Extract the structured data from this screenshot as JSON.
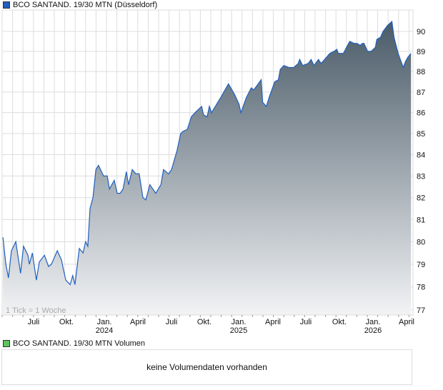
{
  "legend": {
    "price_label": "BCO SANTAND. 19/30 MTN (Düsseldorf)",
    "price_color": "#1f5fbf",
    "volume_label": "BCO SANTAND. 19/30 MTN Volumen",
    "volume_color": "#5cc45c"
  },
  "tick_note": "1 Tick = 1 Woche",
  "volume_message": "keine Volumendaten vorhanden",
  "chart_data": {
    "type": "area",
    "title": "",
    "xlabel": "",
    "ylabel": "",
    "ylim": [
      77,
      90.6
    ],
    "yscale": "log",
    "grid": true,
    "y_ticks": [
      77,
      78,
      79,
      80,
      81,
      82,
      83,
      84,
      85,
      86,
      87,
      88,
      89,
      90
    ],
    "x_ticks": [
      {
        "label": "Juli",
        "year": ""
      },
      {
        "label": "Okt.",
        "year": ""
      },
      {
        "label": "Jan.",
        "year": "2024"
      },
      {
        "label": "April",
        "year": ""
      },
      {
        "label": "Juli",
        "year": ""
      },
      {
        "label": "Okt.",
        "year": ""
      },
      {
        "label": "Jan.",
        "year": "2025"
      },
      {
        "label": "April",
        "year": ""
      },
      {
        "label": "Juli",
        "year": ""
      },
      {
        "label": "Okt.",
        "year": ""
      },
      {
        "label": "Jan.",
        "year": "2026"
      },
      {
        "label": "April",
        "year": ""
      }
    ],
    "line_color": "#1f5fbf",
    "fill_top_color": "#4a5b68",
    "fill_bottom_color": "#f2f3f5",
    "series": [
      {
        "dates": [
          "2023-03-31",
          "2023-04-08",
          "2023-04-15",
          "2023-04-23",
          "2023-05-05",
          "2023-05-18",
          "2023-05-26",
          "2023-06-07",
          "2023-06-11",
          "2023-06-19",
          "2023-06-30",
          "2023-07-08",
          "2023-07-22",
          "2023-08-02",
          "2023-08-10",
          "2023-08-26",
          "2023-09-06",
          "2023-09-18",
          "2023-09-30",
          "2023-10-07",
          "2023-10-13",
          "2023-10-25",
          "2023-11-04",
          "2023-11-11",
          "2023-11-17",
          "2023-11-23",
          "2023-12-01",
          "2023-12-09",
          "2023-12-16",
          "2023-12-30",
          "2024-01-09",
          "2024-01-15",
          "2024-01-28",
          "2024-02-05",
          "2024-02-13",
          "2024-02-21",
          "2024-03-01",
          "2024-03-07",
          "2024-03-17",
          "2024-03-27",
          "2024-04-05",
          "2024-04-15",
          "2024-04-23",
          "2024-05-04",
          "2024-05-20",
          "2024-06-03",
          "2024-06-10",
          "2024-06-24",
          "2024-07-02",
          "2024-07-17",
          "2024-07-27",
          "2024-08-02",
          "2024-08-14",
          "2024-08-25",
          "2024-09-04",
          "2024-09-22",
          "2024-09-27",
          "2024-10-07",
          "2024-10-13",
          "2024-10-19",
          "2024-11-05",
          "2024-11-15",
          "2024-12-01",
          "2024-12-04",
          "2024-12-20",
          "2025-01-02",
          "2025-01-07",
          "2025-01-21",
          "2025-02-04",
          "2025-02-11",
          "2025-02-23",
          "2025-03-03",
          "2025-03-07",
          "2025-03-17",
          "2025-03-26",
          "2025-04-09",
          "2025-04-19",
          "2025-04-24",
          "2025-05-04",
          "2025-05-18",
          "2025-05-31",
          "2025-06-12",
          "2025-06-16",
          "2025-06-24",
          "2025-07-09",
          "2025-07-17",
          "2025-07-25",
          "2025-08-06",
          "2025-08-13",
          "2025-08-23",
          "2025-09-06",
          "2025-09-17",
          "2025-09-25",
          "2025-09-29",
          "2025-10-13",
          "2025-10-30",
          "2025-11-11",
          "2025-11-19",
          "2025-11-28",
          "2025-12-04",
          "2025-12-08",
          "2025-12-18",
          "2025-12-27",
          "2026-01-08",
          "2026-01-12",
          "2026-01-22",
          "2026-01-29",
          "2026-02-10",
          "2026-02-22",
          "2026-02-28",
          "2026-03-11",
          "2026-03-25",
          "2026-03-31",
          "2026-04-06",
          "2026-04-15"
        ],
        "values": [
          80.2,
          79.0,
          78.4,
          79.6,
          80.0,
          78.6,
          79.8,
          79.4,
          79.0,
          79.5,
          78.3,
          79.1,
          79.4,
          78.9,
          79.0,
          79.6,
          79.2,
          78.3,
          78.1,
          78.5,
          78.1,
          79.7,
          79.5,
          80.0,
          79.8,
          81.5,
          82.0,
          83.3,
          83.5,
          83.0,
          83.0,
          82.4,
          82.8,
          82.2,
          82.2,
          82.4,
          83.2,
          82.6,
          83.3,
          83.1,
          83.1,
          82.0,
          81.9,
          82.6,
          82.2,
          82.6,
          83.3,
          83.1,
          83.3,
          84.2,
          85.0,
          85.1,
          85.2,
          85.8,
          86.0,
          86.3,
          85.9,
          85.8,
          86.3,
          86.0,
          86.5,
          86.8,
          87.3,
          87.4,
          86.9,
          86.4,
          86.0,
          86.7,
          87.2,
          87.1,
          87.4,
          87.6,
          86.5,
          86.3,
          86.8,
          87.5,
          87.6,
          88.1,
          88.3,
          88.2,
          88.2,
          88.4,
          88.6,
          88.3,
          88.4,
          88.6,
          88.3,
          88.6,
          88.4,
          88.6,
          88.9,
          89.0,
          89.1,
          88.9,
          88.9,
          89.5,
          89.4,
          89.4,
          89.3,
          89.4,
          89.4,
          89.0,
          89.0,
          89.2,
          89.6,
          89.7,
          90.0,
          90.3,
          90.5,
          89.7,
          88.9,
          88.2,
          88.5,
          88.7,
          88.9
        ]
      }
    ]
  }
}
